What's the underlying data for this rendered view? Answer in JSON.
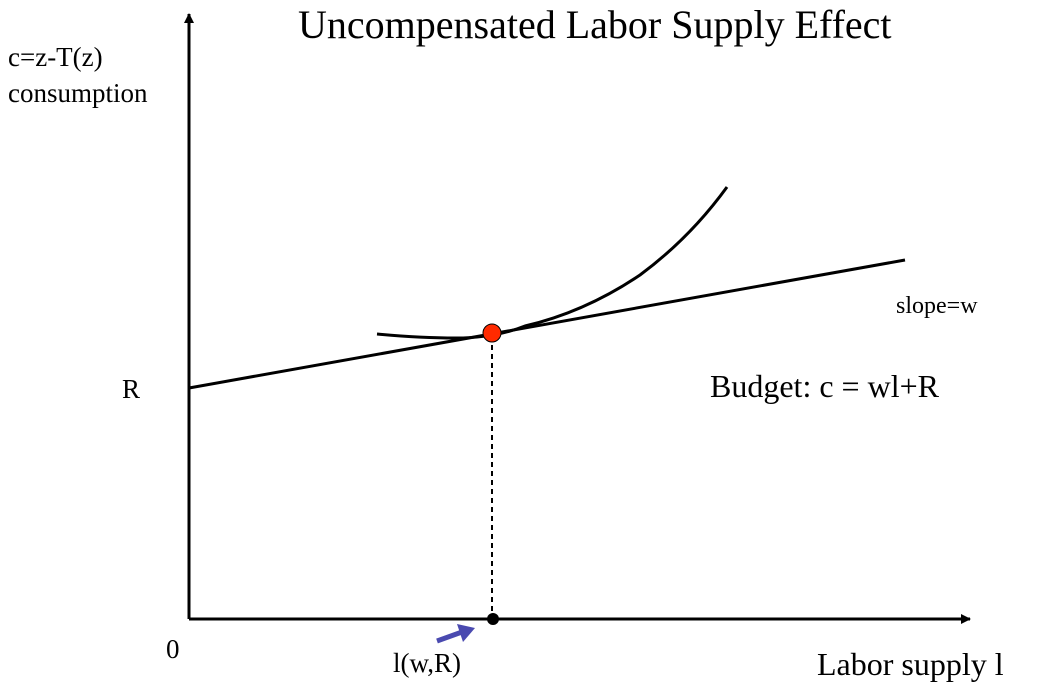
{
  "title": "Uncompensated Labor Supply Effect",
  "y_axis": {
    "line1": "c=z-T(z)",
    "line2": "consumption"
  },
  "x_axis": {
    "label": "Labor supply l"
  },
  "origin_label": "0",
  "intercept_label": "R",
  "slope_label": "slope=w",
  "budget_label": "Budget: c = wl+R",
  "optimum_label": "l(w,R)",
  "colors": {
    "axis": "#000000",
    "optimum_point": "#ff2a00",
    "pointer_arrow": "#4a4ab0"
  }
}
